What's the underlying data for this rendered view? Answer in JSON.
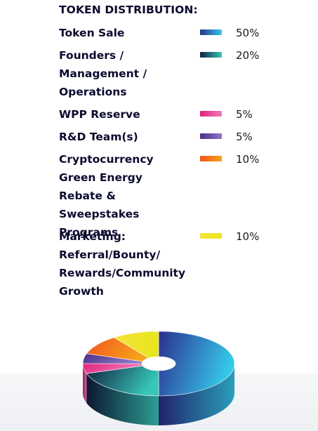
{
  "chart_data": {
    "type": "pie",
    "title": "TOKEN DISTRIBUTION:",
    "slices": [
      {
        "label": "Token Sale",
        "value": 50,
        "value_label": "50%",
        "color_start": "#2b2f8f",
        "color_end": "#35c7e9"
      },
      {
        "label": "Founders / Management / Operations",
        "value": 20,
        "value_label": "20%",
        "color_start": "#111f3e",
        "color_end": "#37c6b9"
      },
      {
        "label": "WPP Reserve",
        "value": 5,
        "value_label": "5%",
        "color_start": "#e0217c",
        "color_end": "#f27db8"
      },
      {
        "label": "R&D Team(s)",
        "value": 5,
        "value_label": "5%",
        "color_start": "#4a2f86",
        "color_end": "#8b78c6"
      },
      {
        "label": "Cryptocurrency Green Energy Rebate & Sweepstakes Programs",
        "value": 10,
        "value_label": "10%",
        "color_start": "#f2541f",
        "color_end": "#f7a21a"
      },
      {
        "label": "Marketing: Referral/Bounty/ Rewards/Community Growth",
        "value": 10,
        "value_label": "10%",
        "color_start": "#f6e23a",
        "color_end": "#e8e61f"
      }
    ],
    "legend_position": "top"
  }
}
